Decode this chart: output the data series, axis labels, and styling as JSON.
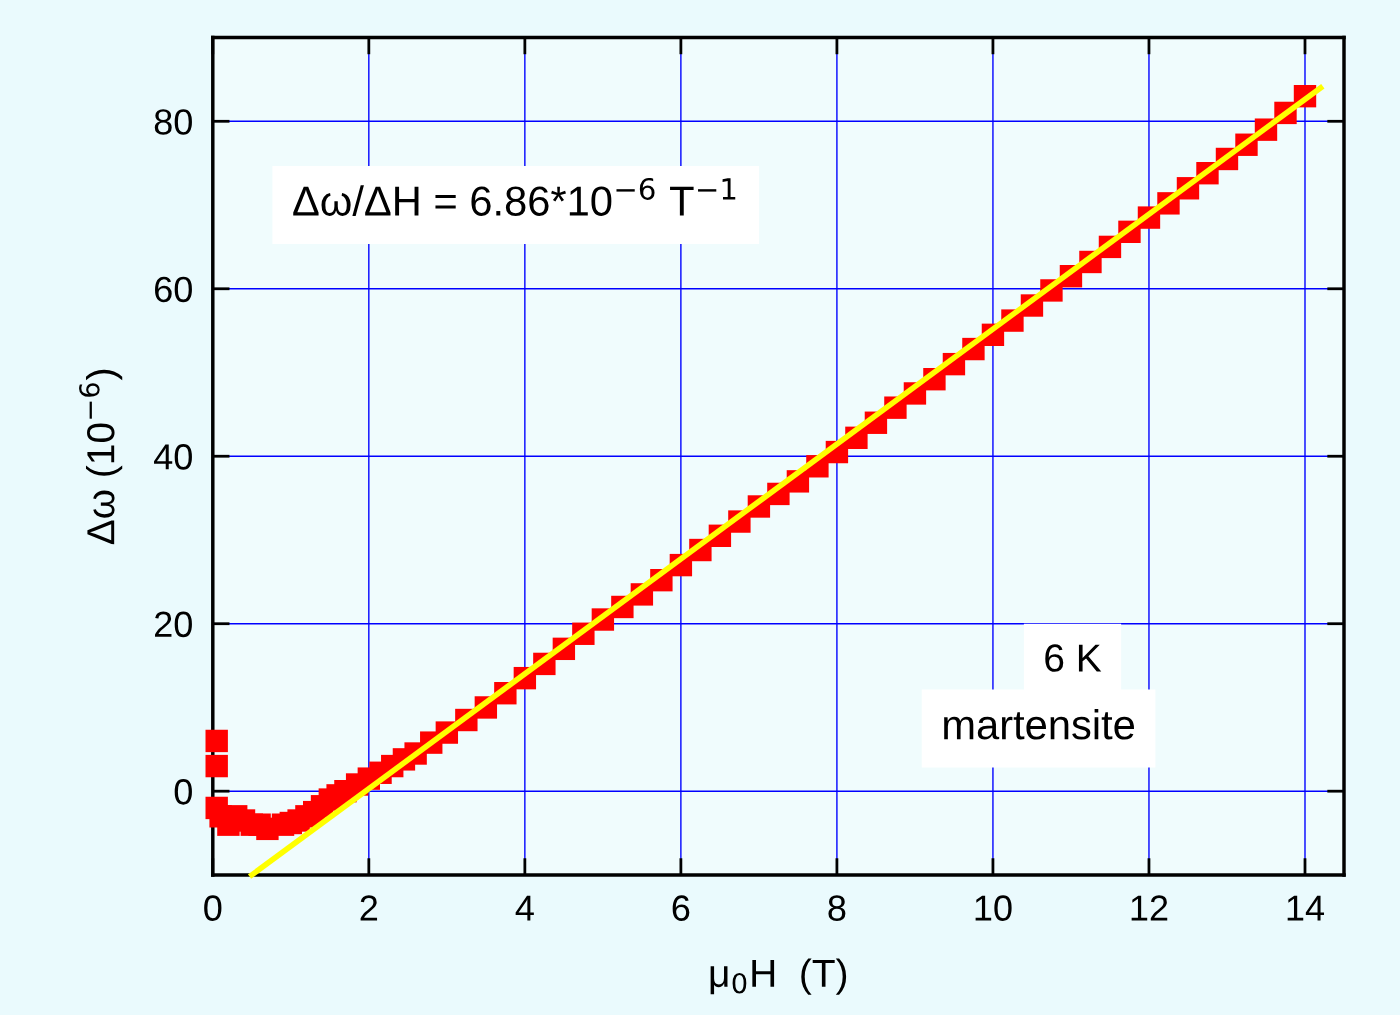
{
  "chart_data": {
    "type": "scatter",
    "xlabel": "μ$_{0}$H  (T)",
    "ylabel": "Δω (10$^{−6}$)",
    "xlim": [
      0,
      14.5
    ],
    "ylim": [
      -10,
      90
    ],
    "xticks": [
      0,
      2,
      4,
      6,
      8,
      10,
      12,
      14
    ],
    "yticks": [
      0,
      20,
      40,
      60,
      80
    ],
    "grid": true,
    "annotations": [
      "Δω/ΔH = 6.86*10$^{−6}$ T$^{−1}$",
      "6 K",
      "martensite"
    ],
    "series": [
      {
        "color": "#ff0000",
        "marker": "square",
        "x": [
          0.05,
          0.05,
          0.05,
          0.1,
          0.2,
          0.3,
          0.4,
          0.5,
          0.6,
          0.7,
          0.9,
          1.0,
          1.1,
          1.2,
          1.3,
          1.4,
          1.5,
          1.6,
          1.7,
          1.85,
          2.0,
          2.15,
          2.3,
          2.45,
          2.6,
          2.8,
          3.0,
          3.25,
          3.5,
          3.75,
          4.0,
          4.25,
          4.5,
          4.75,
          5.0,
          5.25,
          5.5,
          5.75,
          6.0,
          6.25,
          6.5,
          6.75,
          7.0,
          7.25,
          7.5,
          7.75,
          8.0,
          8.25,
          8.5,
          8.75,
          9.0,
          9.25,
          9.5,
          9.75,
          10.0,
          10.25,
          10.5,
          10.75,
          11.0,
          11.25,
          11.5,
          11.75,
          12.0,
          12.25,
          12.5,
          12.75,
          13.0,
          13.25,
          13.5,
          13.75,
          14.0
        ],
        "values": [
          6,
          3,
          -2,
          -3,
          -4,
          -3,
          -3.5,
          -4,
          -4,
          -4.5,
          -4,
          -3.8,
          -3.5,
          -3,
          -2.5,
          -1.8,
          -1,
          -0.5,
          0,
          0.8,
          1.5,
          2.2,
          3,
          3.8,
          4.5,
          5.8,
          7,
          8.5,
          10,
          11.7,
          13.5,
          15.2,
          17,
          18.8,
          20.5,
          22,
          23.5,
          25.2,
          27,
          28.8,
          30.5,
          32.2,
          34,
          35.5,
          37,
          38.8,
          40.5,
          42.2,
          44,
          45.8,
          47.5,
          49.2,
          51,
          52.8,
          54.5,
          56.2,
          58,
          59.8,
          61.5,
          63.2,
          65,
          66.8,
          68.5,
          70.2,
          72,
          73.8,
          75.5,
          77.2,
          79,
          81,
          83
        ]
      },
      {
        "type": "line",
        "color": "#ffff00",
        "x": [
          0.5,
          14.2
        ],
        "values": [
          -10,
          84
        ]
      }
    ]
  }
}
